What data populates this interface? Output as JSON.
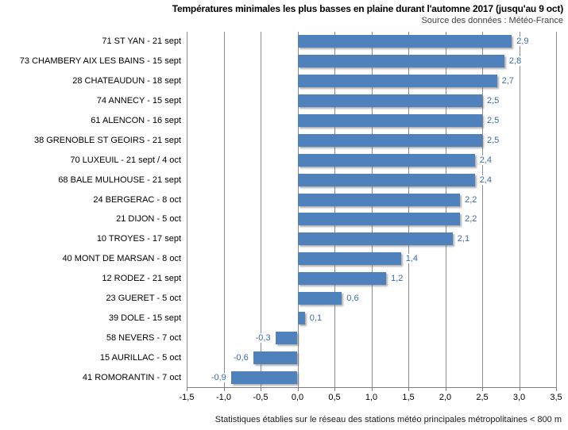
{
  "header": {
    "title": "Températures minimales les plus basses en plaine durant l'automne 2017 (jusqu'au 9 oct)",
    "source": "Source des données : Météo-France"
  },
  "footer": {
    "note": "Statistiques établies sur le réseau des stations météo principales métropolitaines < 800 m"
  },
  "colors": {
    "bar": "#4f81bd",
    "value_label": "#3a6ca8",
    "gridline": "#8c8c8c",
    "axis": "#7f7f7f"
  },
  "chart_data": {
    "type": "bar",
    "orientation": "horizontal",
    "title": "Températures minimales les plus basses en plaine durant l'automne 2017 (jusqu'au 9 oct)",
    "subtitle": "Source des données : Météo-France",
    "xlabel": "",
    "ylabel": "",
    "xlim": [
      -1.5,
      3.5
    ],
    "grid": true,
    "categories": [
      "71 ST YAN - 21 sept",
      "73 CHAMBERY AIX LES BAINS - 15 sept",
      "28 CHATEAUDUN - 18 sept",
      "74 ANNECY - 15 sept",
      "61 ALENCON - 16 sept",
      "38 GRENOBLE ST GEOIRS - 21 sept",
      "70 LUXEUIL - 21 sept / 4 oct",
      "68 BALE MULHOUSE - 21 sept",
      "24 BERGERAC - 8 oct",
      "21 DIJON - 5 oct",
      "10 TROYES - 17 sept",
      "40 MONT DE MARSAN - 8 oct",
      "12 RODEZ - 21 sept",
      "23 GUERET - 5 oct",
      "39 DOLE - 15 sept",
      "58 NEVERS - 7 oct",
      "15 AURILLAC - 5 oct",
      "41 ROMORANTIN - 7 oct"
    ],
    "values": [
      2.9,
      2.8,
      2.7,
      2.5,
      2.5,
      2.5,
      2.4,
      2.4,
      2.2,
      2.2,
      2.1,
      1.4,
      1.2,
      0.6,
      0.1,
      -0.3,
      -0.6,
      -0.9
    ],
    "value_labels": [
      "2,9",
      "2,8",
      "2,7",
      "2,5",
      "2,5",
      "2,5",
      "2,4",
      "2,4",
      "2,2",
      "2,2",
      "2,1",
      "1,4",
      "1,2",
      "0,6",
      "0,1",
      "-0,3",
      "-0,6",
      "-0,9"
    ],
    "x_ticks": [
      {
        "value": -1.5,
        "label": "-1,5"
      },
      {
        "value": -1.0,
        "label": "-1,0"
      },
      {
        "value": -0.5,
        "label": "-0,5"
      },
      {
        "value": 0.0,
        "label": "0,0"
      },
      {
        "value": 0.5,
        "label": "0,5"
      },
      {
        "value": 1.0,
        "label": "1,0"
      },
      {
        "value": 1.5,
        "label": "1,5"
      },
      {
        "value": 2.0,
        "label": "2,0"
      },
      {
        "value": 2.5,
        "label": "2,5"
      },
      {
        "value": 3.0,
        "label": "3,0"
      },
      {
        "value": 3.5,
        "label": "3,5"
      }
    ]
  }
}
